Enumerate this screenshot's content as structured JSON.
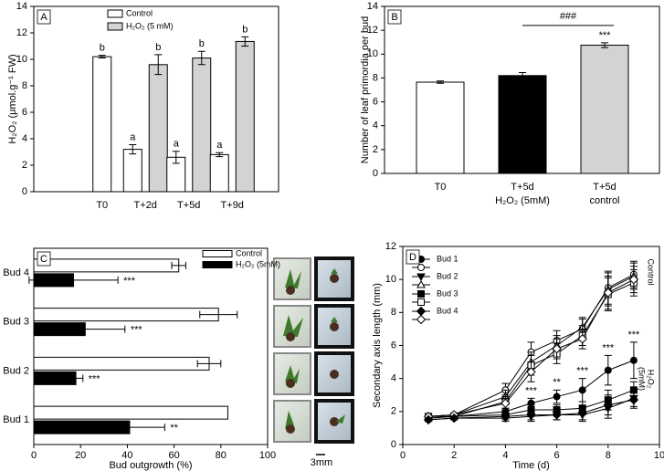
{
  "chart_data": [
    {
      "type": "bar",
      "panel": "A",
      "ylabel": "H₂O₂ (μmol.g⁻¹ FW)",
      "categories": [
        "T0",
        "T+2d",
        "T+5d",
        "T+9d"
      ],
      "series": [
        {
          "name": "Control",
          "color": "#ffffff",
          "values": [
            10.2,
            3.2,
            2.6,
            2.8
          ],
          "errors": [
            0.1,
            0.35,
            0.45,
            0.15
          ],
          "annotations": [
            "b",
            "a",
            "a",
            "a"
          ]
        },
        {
          "name": "H₂O₂ (5 mM)",
          "color": "#d3d3d3",
          "values": [
            null,
            9.6,
            10.1,
            11.35
          ],
          "errors": [
            null,
            0.75,
            0.5,
            0.35
          ],
          "annotations": [
            null,
            "b",
            "b",
            "b"
          ]
        }
      ],
      "ylim": [
        0,
        14
      ],
      "yticks": [
        0,
        2,
        4,
        6,
        8,
        10,
        12,
        14
      ]
    },
    {
      "type": "bar",
      "panel": "B",
      "ylabel": "Number of leaf primordia per bud",
      "categories": [
        "T0",
        "T+5d",
        "T+5d"
      ],
      "sublabels": [
        null,
        "H₂O₂ (5mM)",
        "control"
      ],
      "values": [
        7.65,
        8.2,
        10.75
      ],
      "errors": [
        0.1,
        0.25,
        0.2
      ],
      "colors": [
        "#ffffff",
        "#000000",
        "#d3d3d3"
      ],
      "annotations": [
        null,
        null,
        "***"
      ],
      "comparison_label": "###",
      "ylim": [
        0,
        14
      ],
      "yticks": [
        0,
        2,
        4,
        6,
        8,
        10,
        12,
        14
      ]
    },
    {
      "type": "barh",
      "panel": "C",
      "xlabel": "Bud outgrowth (%)",
      "categories": [
        "Bud 1",
        "Bud 2",
        "Bud 3",
        "Bud 4"
      ],
      "series": [
        {
          "name": "Control",
          "color": "#ffffff",
          "values": [
            83,
            75,
            79,
            62
          ],
          "errors": [
            null,
            5,
            8,
            3
          ]
        },
        {
          "name": "H₂O₂ (5mM)",
          "color": "#000000",
          "values": [
            41,
            18,
            22,
            17
          ],
          "errors": [
            15,
            3,
            17,
            19
          ],
          "annotations": [
            "**",
            "***",
            "***",
            "***"
          ]
        }
      ],
      "xlim": [
        0,
        100
      ],
      "xticks": [
        0,
        20,
        40,
        60,
        80,
        100
      ],
      "photos": {
        "scale_label": "3mm"
      }
    },
    {
      "type": "line",
      "panel": "D",
      "xlabel": "Time (d)",
      "ylabel": "Secondary axis length (mm)",
      "x": [
        1,
        2,
        4,
        5,
        6,
        7,
        8,
        9
      ],
      "buds": [
        {
          "name": "Bud 1",
          "marker": "circle",
          "control": {
            "values": [
              1.7,
              1.8,
              3.3,
              5.6,
              6.3,
              7.0,
              9.5,
              10.3
            ],
            "errors": [
              0.1,
              0.1,
              0.4,
              0.6,
              0.6,
              0.6,
              1.0,
              0.8
            ]
          },
          "h2o2": {
            "values": [
              1.6,
              1.7,
              2.0,
              2.5,
              2.9,
              3.3,
              4.5,
              5.1
            ],
            "errors": [
              0.1,
              0.1,
              0.2,
              0.3,
              0.4,
              0.7,
              0.9,
              1.1
            ]
          }
        },
        {
          "name": "Bud 2",
          "marker": "triangle",
          "control": {
            "values": [
              1.7,
              1.8,
              2.9,
              5.0,
              6.0,
              7.1,
              9.4,
              10.2
            ],
            "errors": [
              0.1,
              0.1,
              0.4,
              0.6,
              0.6,
              0.6,
              1.0,
              0.8
            ]
          },
          "h2o2": {
            "values": [
              1.5,
              1.6,
              1.6,
              1.7,
              1.8,
              1.8,
              2.2,
              2.8
            ],
            "errors": [
              0.1,
              0.1,
              0.2,
              0.3,
              0.3,
              0.4,
              0.6,
              0.5
            ]
          }
        },
        {
          "name": "Bud 3",
          "marker": "square",
          "control": {
            "values": [
              1.7,
              1.7,
              2.6,
              4.8,
              5.5,
              6.6,
              9.1,
              9.8
            ],
            "errors": [
              0.1,
              0.1,
              0.4,
              0.6,
              0.6,
              0.6,
              1.0,
              0.8
            ]
          },
          "h2o2": {
            "values": [
              1.6,
              1.7,
              1.8,
              2.1,
              2.1,
              2.2,
              2.7,
              3.3
            ],
            "errors": [
              0.1,
              0.1,
              0.2,
              0.3,
              0.3,
              0.4,
              0.6,
              0.5
            ]
          }
        },
        {
          "name": "Bud 4",
          "marker": "diamond",
          "control": {
            "values": [
              1.7,
              1.8,
              2.5,
              4.4,
              5.8,
              6.4,
              9.2,
              10.0
            ],
            "errors": [
              0.1,
              0.1,
              0.4,
              0.6,
              0.6,
              0.6,
              1.0,
              0.8
            ]
          },
          "h2o2": {
            "values": [
              1.5,
              1.6,
              1.7,
              1.8,
              1.8,
              1.9,
              2.4,
              2.7
            ],
            "errors": [
              0.1,
              0.1,
              0.2,
              0.3,
              0.3,
              0.4,
              0.6,
              0.5
            ]
          }
        }
      ],
      "control_label": "Control",
      "h2o2_label": [
        "H₂O₂",
        "(5mM)"
      ],
      "significance": [
        null,
        null,
        "**",
        "***",
        "**",
        "***",
        "***",
        "***"
      ],
      "xlim": [
        0,
        10
      ],
      "xticks": [
        0,
        2,
        4,
        6,
        8,
        10
      ],
      "ylim": [
        0,
        12
      ],
      "yticks": [
        0,
        2,
        4,
        6,
        8,
        10,
        12
      ]
    }
  ]
}
